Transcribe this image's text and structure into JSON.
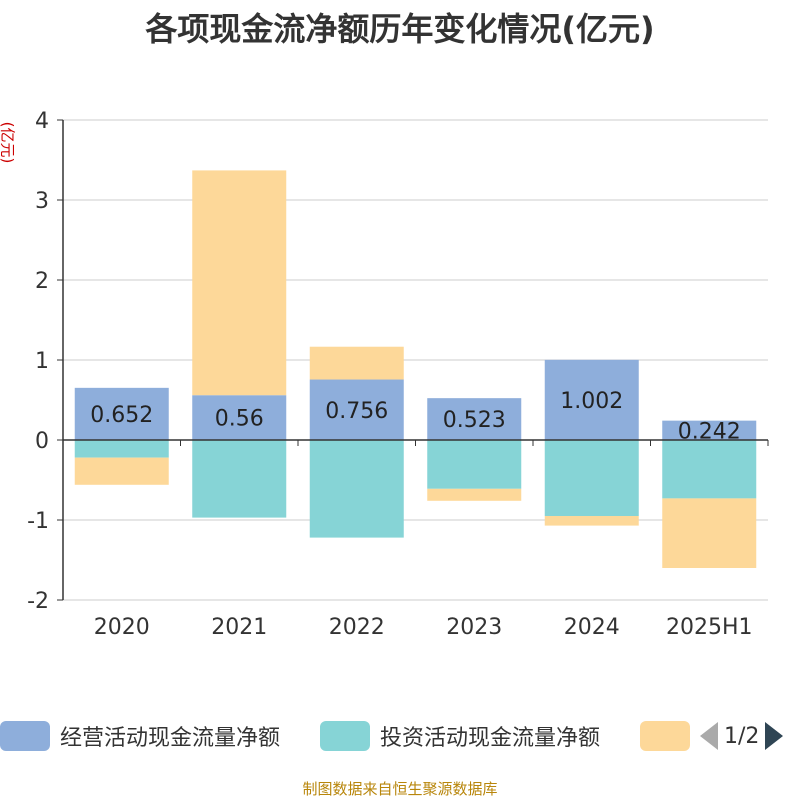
{
  "title": "各项现金流净额历年变化情况(亿元)",
  "source": "制图数据来自恒生聚源数据库",
  "legend": {
    "items": [
      {
        "label": "经营活动现金流量净额",
        "color": "#8eaedb"
      },
      {
        "label": "投资活动现金流量净额",
        "color": "#86d4d6"
      },
      {
        "label": "",
        "color": "#fdd899"
      }
    ],
    "page": "1/2"
  },
  "chart_data": {
    "type": "bar",
    "stacked": true,
    "categories": [
      "2020",
      "2021",
      "2022",
      "2023",
      "2024",
      "2025H1"
    ],
    "ylabel": "(亿元)",
    "ylim": [
      -2,
      4
    ],
    "yticks": [
      -2,
      -1,
      0,
      1,
      2,
      3,
      4
    ],
    "grid": true,
    "legend_position": "bottom",
    "series": [
      {
        "name": "经营活动现金流量净额",
        "color": "#8eaedb",
        "values": [
          0.652,
          0.56,
          0.756,
          0.523,
          1.002,
          0.242
        ],
        "labels": [
          "0.652",
          "0.56",
          "0.756",
          "0.523",
          "1.002",
          "0.242"
        ]
      },
      {
        "name": "投资活动现金流量净额",
        "color": "#86d4d6",
        "values": [
          -0.22,
          -0.97,
          -1.22,
          -0.61,
          -0.95,
          -0.73
        ]
      },
      {
        "name": "",
        "color": "#fdd899",
        "values": [
          -0.34,
          2.81,
          0.41,
          -0.15,
          -0.12,
          -0.87
        ]
      }
    ]
  }
}
